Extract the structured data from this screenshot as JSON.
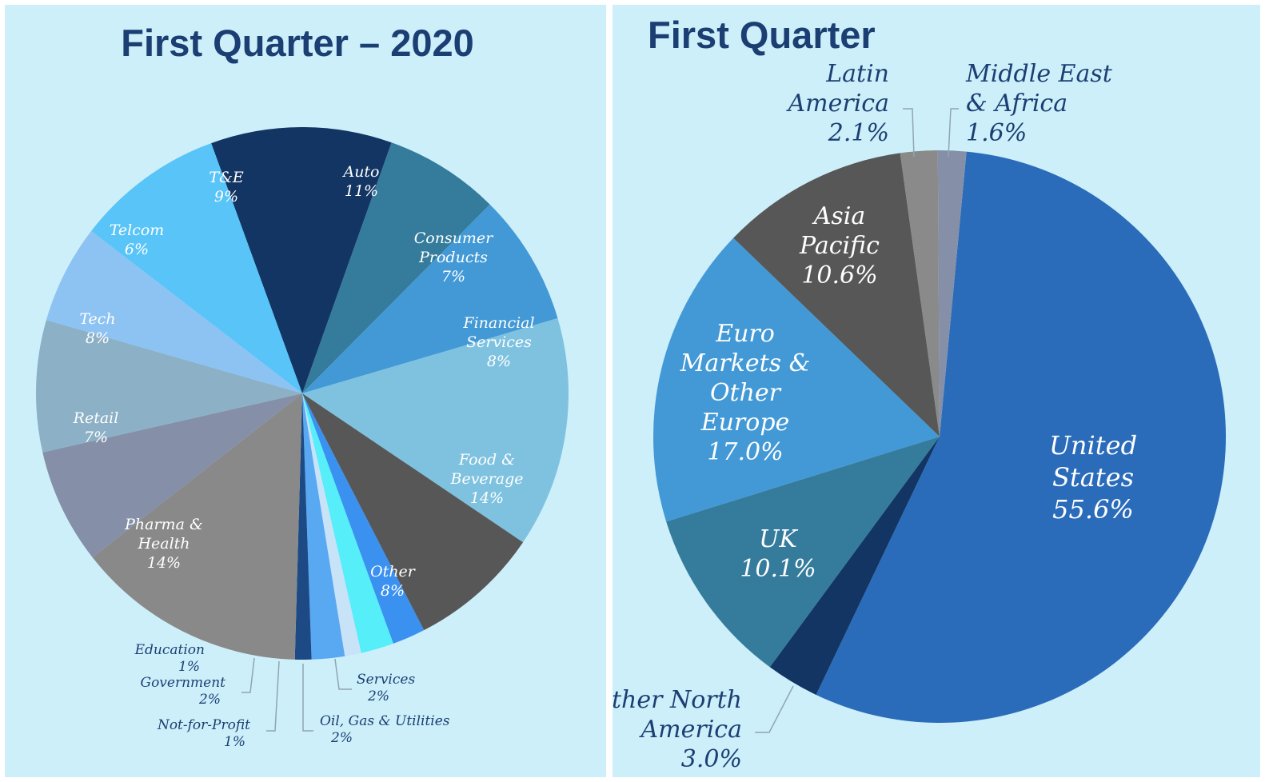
{
  "charts": [
    {
      "title": "First Quarter – 2020",
      "chart_data": {
        "type": "pie",
        "title": "First Quarter – 2020",
        "slices": [
          {
            "label": "Auto",
            "pct_text": "11%",
            "value": 11,
            "color": "#133563"
          },
          {
            "label": "Consumer Products",
            "pct_text": "7%",
            "value": 7,
            "color": "#347b9c"
          },
          {
            "label": "Financial Services",
            "pct_text": "8%",
            "value": 8,
            "color": "#4399d6"
          },
          {
            "label": "Food & Beverage",
            "pct_text": "14%",
            "value": 14,
            "color": "#7fc2e0"
          },
          {
            "label": "Other",
            "pct_text": "8%",
            "value": 8,
            "color": "#575757"
          },
          {
            "label": "Services",
            "pct_text": "2%",
            "value": 2,
            "color": "#3a91f0"
          },
          {
            "label": "Oil, Gas & Utilities",
            "pct_text": "2%",
            "value": 2,
            "color": "#55eef9"
          },
          {
            "label": "Not-for-Profit",
            "pct_text": "1%",
            "value": 1,
            "color": "#c8e2f7"
          },
          {
            "label": "Government",
            "pct_text": "2%",
            "value": 2,
            "color": "#59a8f2"
          },
          {
            "label": "Education",
            "pct_text": "1%",
            "value": 1,
            "color": "#1d4a85"
          },
          {
            "label": "Pharma & Health",
            "pct_text": "14%",
            "value": 14,
            "color": "#898989"
          },
          {
            "label": "Retail",
            "pct_text": "7%",
            "value": 7,
            "color": "#8590a8"
          },
          {
            "label": "Tech",
            "pct_text": "8%",
            "value": 8,
            "color": "#8cb0c6"
          },
          {
            "label": "Telcom",
            "pct_text": "6%",
            "value": 6,
            "color": "#8cc3f3"
          },
          {
            "label": "T&E",
            "pct_text": "9%",
            "value": 9,
            "color": "#58c4f8"
          }
        ]
      }
    },
    {
      "title": "First Quarter",
      "chart_data": {
        "type": "pie",
        "title": "First Quarter",
        "slices": [
          {
            "label": "United States",
            "pct_text": "55.6%",
            "value": 55.6,
            "color": "#2b6cba"
          },
          {
            "label": "Other North America",
            "pct_text": "3.0%",
            "value": 3.0,
            "color": "#133563"
          },
          {
            "label": "UK",
            "pct_text": "10.1%",
            "value": 10.1,
            "color": "#347b9c"
          },
          {
            "label": "Euro Markets & Other Europe",
            "pct_text": "17.0%",
            "value": 17.0,
            "color": "#4399d6"
          },
          {
            "label": "Asia Pacific",
            "pct_text": "10.6%",
            "value": 10.6,
            "color": "#575757"
          },
          {
            "label": "Latin America",
            "pct_text": "2.1%",
            "value": 2.1,
            "color": "#8a8a8a"
          },
          {
            "label": "Middle East & Africa",
            "pct_text": "1.6%",
            "value": 1.6,
            "color": "#8590a8"
          }
        ]
      }
    }
  ]
}
